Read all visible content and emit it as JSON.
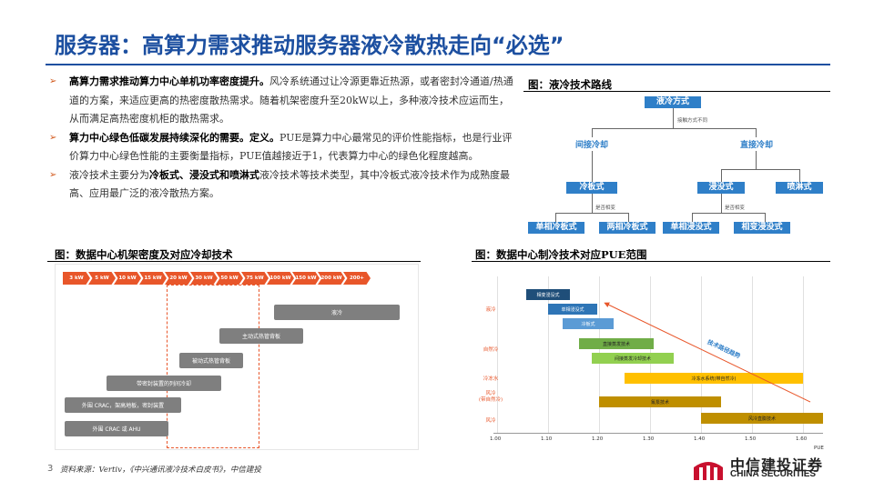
{
  "title": "服务器：高算力需求推动服务器液冷散热走向“必选”",
  "bullets": [
    {
      "bold": "高算力需求推动算力中心单机功率密度提升。",
      "rest": "风冷系统通过让冷源更靠近热源，或者密封冷通道/热通道的方案，来适应更高的热密度散热需求。随着机架密度升至20kW以上，多种液冷技术应运而生，从而满足高热密度机柜的散热需求。"
    },
    {
      "bold": "算力中心绿色低碳发展持续深化的需要。定义。",
      "rest": "PUE是算力中心最常见的评价性能指标，也是行业评价算力中心绿色性能的主要衡量指标，PUE值越接近于1，代表算力中心的绿色化程度越高。"
    },
    {
      "pre": "液冷技术主要分为",
      "bold": "冷板式、浸没式和喷淋式",
      "rest": "液冷技术等技术类型，其中冷板式液冷技术作为成熟度最高、应用最广泛的液冷散热方案。"
    }
  ],
  "figs": {
    "tree_label": "图：液冷技术路线",
    "density_label": "图：数据中心机架密度及对应冷却技术",
    "pue_label": "图：数据中心制冷技术对应PUE范围"
  },
  "tree": {
    "root": "液冷方式",
    "root_note": "接触方式不同",
    "indirect": "间接冷却",
    "direct": "直接冷却",
    "coldplate": "冷板式",
    "immersion": "浸没式",
    "spray": "喷淋式",
    "phase_note1": "是否相变",
    "phase_note2": "是否相变",
    "leaf1": "单相冷板式",
    "leaf2": "两相冷板式",
    "leaf3": "单相浸没式",
    "leaf4": "相变浸没式"
  },
  "density": {
    "steps": [
      "3 kW",
      "5 kW",
      "10 kW",
      "15 kW",
      "20 kW",
      "30 kW",
      "50 kW",
      "75 kW",
      "100 kW",
      "150 kW",
      "200 kW",
      "200+"
    ],
    "bars": [
      "液冷",
      "主动式热管背板",
      "被动式热管背板",
      "带密封装置的列间冷却",
      "外围 CRAC，架高地板，密封装置",
      "外围 CRAC 或 AHU"
    ]
  },
  "pue": {
    "rows": [
      "液冷",
      "自然冷",
      "冷冻水",
      "风冷\n(带自然冷)",
      "风冷"
    ],
    "bars": [
      "相变浸没式",
      "单相浸没式",
      "冷板式",
      "直接蒸发技术",
      "间接蒸发冷却技术",
      "冷冻水系统(带自然冷)",
      "氟泵技术",
      "风冷直膨技术"
    ],
    "trend": "技术路径趋势",
    "ticks": [
      "1.00",
      "1.10",
      "1.20",
      "1.30",
      "1.40",
      "1.50",
      "1.60"
    ],
    "axis_label": "PUE",
    "colors": {
      "liquid": "#1f4e79",
      "liquid2": "#2e75b6",
      "liquid3": "#5b9bd5",
      "natural": "#70ad47",
      "chilled": "#ffc000",
      "air": "#bf8f00",
      "trend": "#e8562a"
    }
  },
  "footer": {
    "page": "3",
    "source": "资料来源：Vertiv，《中兴通讯液冷技术白皮书》，中信建投",
    "logo_cn": "中信建投证券",
    "logo_en": "CHINA SECURITIES"
  }
}
